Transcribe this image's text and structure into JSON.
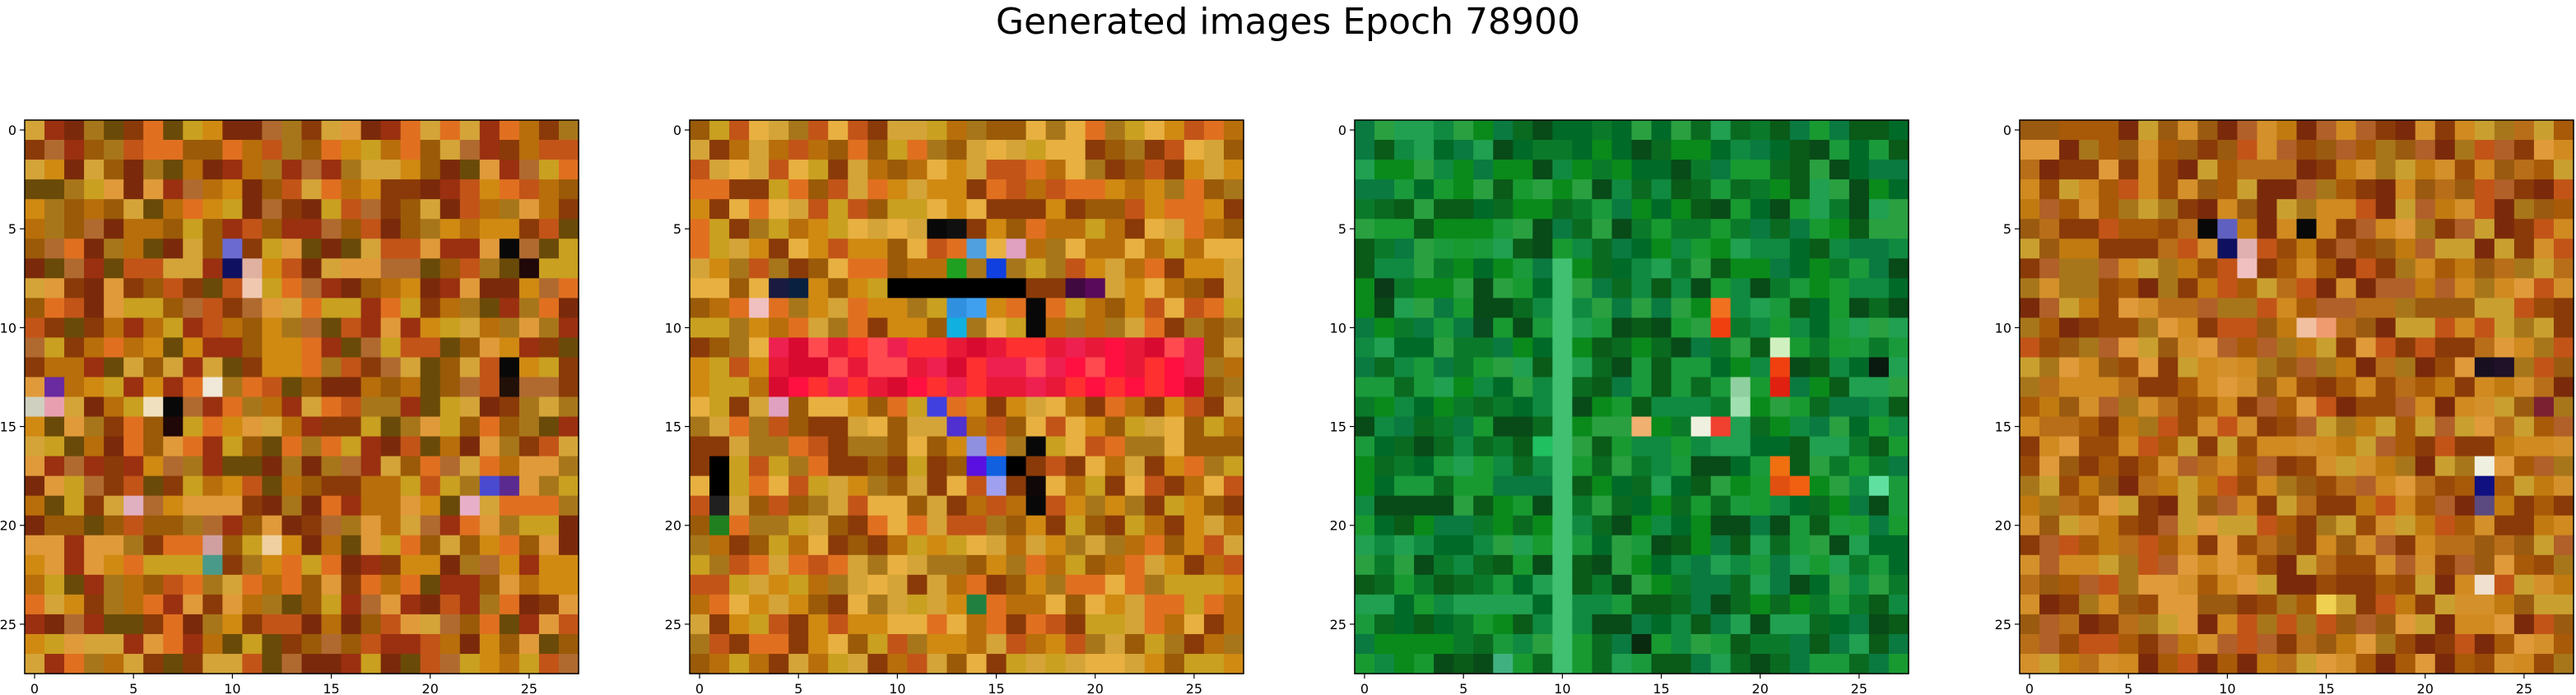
{
  "figure": {
    "title": "Generated images Epoch 78900"
  },
  "chart_data": {
    "type": "heatmap",
    "grid_size": 28,
    "panels": [
      {
        "name": "",
        "xticks": [
          "0",
          "5",
          "10",
          "15",
          "20",
          "25"
        ],
        "yticks": [
          "0",
          "5",
          "10",
          "15",
          "20",
          "25"
        ],
        "tick_values": [
          0,
          5,
          10,
          15,
          20,
          25
        ],
        "palette": [
          "#d08a12",
          "#b86e0a",
          "#9a5a08",
          "#c9a020",
          "#8a3a08",
          "#e07020",
          "#b06a30",
          "#7a2a0a",
          "#d4a438",
          "#a8761a",
          "#c25418",
          "#6a4a08",
          "#e09a3a",
          "#9a3010"
        ],
        "highlights": [
          {
            "r": 7,
            "c": 10,
            "color": "#101060"
          },
          {
            "r": 6,
            "c": 10,
            "color": "#6a6ad0"
          },
          {
            "r": 7,
            "c": 11,
            "color": "#e0b0a0"
          },
          {
            "r": 8,
            "c": 11,
            "color": "#f0c8b0"
          },
          {
            "r": 6,
            "c": 24,
            "color": "#080808"
          },
          {
            "r": 7,
            "c": 25,
            "color": "#200808"
          },
          {
            "r": 14,
            "c": 0,
            "color": "#d0d0c0"
          },
          {
            "r": 14,
            "c": 1,
            "color": "#e8a0b0"
          },
          {
            "r": 13,
            "c": 1,
            "color": "#6a2aa0"
          },
          {
            "r": 14,
            "c": 6,
            "color": "#f0e0c0"
          },
          {
            "r": 14,
            "c": 7,
            "color": "#080808"
          },
          {
            "r": 15,
            "c": 7,
            "color": "#200808"
          },
          {
            "r": 13,
            "c": 9,
            "color": "#f0e8d8"
          },
          {
            "r": 12,
            "c": 24,
            "color": "#080808"
          },
          {
            "r": 13,
            "c": 24,
            "color": "#201008"
          },
          {
            "r": 18,
            "c": 23,
            "color": "#4a4ad0"
          },
          {
            "r": 18,
            "c": 24,
            "color": "#5a2a90"
          },
          {
            "r": 19,
            "c": 22,
            "color": "#e8b0c8"
          },
          {
            "r": 21,
            "c": 9,
            "color": "#d0a0a0"
          },
          {
            "r": 22,
            "c": 9,
            "color": "#4a9a8a"
          },
          {
            "r": 21,
            "c": 12,
            "color": "#f0d0a0"
          },
          {
            "r": 19,
            "c": 5,
            "color": "#e0b0c0"
          }
        ]
      },
      {
        "name": "",
        "xticks": [
          "0",
          "5",
          "10",
          "15",
          "20",
          "25"
        ],
        "yticks": [
          "0",
          "5",
          "10",
          "15",
          "20",
          "25"
        ],
        "tick_values": [
          0,
          5,
          10,
          15,
          20,
          25
        ],
        "palette": [
          "#d08a12",
          "#b86e0a",
          "#c9a020",
          "#e07020",
          "#a8761a",
          "#d4a438",
          "#9a5a08",
          "#c25418",
          "#e8b040",
          "#8a3a08"
        ],
        "band": {
          "row_from": 11,
          "row_to": 13,
          "col_from": 4,
          "col_to": 25,
          "colors": [
            "#ff1040",
            "#ee2050",
            "#ff3030",
            "#e81838",
            "#ff4a50",
            "#d80a30"
          ]
        },
        "highlights": [
          {
            "r": 5,
            "c": 12,
            "color": "#080808"
          },
          {
            "r": 5,
            "c": 13,
            "color": "#101010"
          },
          {
            "r": 6,
            "c": 14,
            "color": "#50a0e0"
          },
          {
            "r": 7,
            "c": 15,
            "color": "#1040e0"
          },
          {
            "r": 6,
            "c": 16,
            "color": "#e0a0c0"
          },
          {
            "r": 7,
            "c": 13,
            "color": "#20a020"
          },
          {
            "r": 8,
            "c": 10,
            "color": "#000000"
          },
          {
            "r": 8,
            "c": 11,
            "color": "#000000"
          },
          {
            "r": 8,
            "c": 12,
            "color": "#000000"
          },
          {
            "r": 8,
            "c": 13,
            "color": "#000000"
          },
          {
            "r": 8,
            "c": 14,
            "color": "#000000"
          },
          {
            "r": 8,
            "c": 15,
            "color": "#000000"
          },
          {
            "r": 8,
            "c": 16,
            "color": "#000000"
          },
          {
            "r": 8,
            "c": 4,
            "color": "#1a1a40"
          },
          {
            "r": 8,
            "c": 5,
            "color": "#0a2040"
          },
          {
            "r": 9,
            "c": 13,
            "color": "#3090e0"
          },
          {
            "r": 9,
            "c": 14,
            "color": "#40a0f0"
          },
          {
            "r": 10,
            "c": 13,
            "color": "#10b0e0"
          },
          {
            "r": 9,
            "c": 17,
            "color": "#080808"
          },
          {
            "r": 10,
            "c": 17,
            "color": "#080808"
          },
          {
            "r": 14,
            "c": 12,
            "color": "#4040e0"
          },
          {
            "r": 15,
            "c": 13,
            "color": "#5030d0"
          },
          {
            "r": 16,
            "c": 14,
            "color": "#9090e0"
          },
          {
            "r": 17,
            "c": 14,
            "color": "#5a10e0"
          },
          {
            "r": 17,
            "c": 15,
            "color": "#1060e0"
          },
          {
            "r": 18,
            "c": 15,
            "color": "#a0a0f0"
          },
          {
            "r": 17,
            "c": 16,
            "color": "#000000"
          },
          {
            "r": 16,
            "c": 17,
            "color": "#080808"
          },
          {
            "r": 18,
            "c": 17,
            "color": "#100808"
          },
          {
            "r": 19,
            "c": 17,
            "color": "#080808"
          },
          {
            "r": 17,
            "c": 1,
            "color": "#000000"
          },
          {
            "r": 18,
            "c": 1,
            "color": "#000000"
          },
          {
            "r": 19,
            "c": 1,
            "color": "#202020"
          },
          {
            "r": 20,
            "c": 1,
            "color": "#208020"
          },
          {
            "r": 24,
            "c": 14,
            "color": "#208040"
          },
          {
            "r": 14,
            "c": 4,
            "color": "#e0a0c0"
          },
          {
            "r": 9,
            "c": 3,
            "color": "#f0c0c0"
          },
          {
            "r": 8,
            "c": 19,
            "color": "#400a40"
          },
          {
            "r": 8,
            "c": 20,
            "color": "#5a0a5a"
          }
        ]
      },
      {
        "name": "",
        "xticks": [
          "0",
          "5",
          "10",
          "15",
          "20",
          "25"
        ],
        "yticks": [
          "0",
          "5",
          "10",
          "15",
          "20",
          "25"
        ],
        "tick_values": [
          0,
          5,
          10,
          15,
          20,
          25
        ],
        "palette": [
          "#0a7a2a",
          "#0a8a1a",
          "#1a9a3a",
          "#0a6a20",
          "#108a40",
          "#0a5a18",
          "#2aa040",
          "#006a28",
          "#189a30",
          "#0a7a40",
          "#084a18",
          "#20a050"
        ],
        "band_col": {
          "col": 10,
          "row_from": 7,
          "row_to": 27,
          "color": "#40c070"
        },
        "highlights": [
          {
            "r": 9,
            "c": 18,
            "color": "#f07020"
          },
          {
            "r": 10,
            "c": 18,
            "color": "#f04010"
          },
          {
            "r": 11,
            "c": 21,
            "color": "#d0f0c0"
          },
          {
            "r": 12,
            "c": 21,
            "color": "#f04010"
          },
          {
            "r": 13,
            "c": 21,
            "color": "#e02010"
          },
          {
            "r": 13,
            "c": 19,
            "color": "#90d0a0"
          },
          {
            "r": 14,
            "c": 19,
            "color": "#a0e0b0"
          },
          {
            "r": 15,
            "c": 14,
            "color": "#f0b070"
          },
          {
            "r": 15,
            "c": 17,
            "color": "#f0f0e0"
          },
          {
            "r": 15,
            "c": 18,
            "color": "#f04030"
          },
          {
            "r": 17,
            "c": 21,
            "color": "#f07010"
          },
          {
            "r": 18,
            "c": 21,
            "color": "#e05010"
          },
          {
            "r": 18,
            "c": 22,
            "color": "#f06010"
          },
          {
            "r": 12,
            "c": 26,
            "color": "#0a1a10"
          },
          {
            "r": 18,
            "c": 26,
            "color": "#60e0a0"
          },
          {
            "r": 26,
            "c": 14,
            "color": "#0a2a10"
          },
          {
            "r": 27,
            "c": 7,
            "color": "#40b080"
          },
          {
            "r": 8,
            "c": 1,
            "color": "#0a3a18"
          },
          {
            "r": 16,
            "c": 9,
            "color": "#20c060"
          },
          {
            "r": 10,
            "c": 6,
            "color": "#0a4a20"
          }
        ]
      },
      {
        "name": "",
        "xticks": [
          "0",
          "5",
          "10",
          "15",
          "20",
          "25"
        ],
        "yticks": [
          "0",
          "5",
          "10",
          "15",
          "20",
          "25"
        ],
        "tick_values": [
          0,
          5,
          10,
          15,
          20,
          25
        ],
        "palette": [
          "#c07a10",
          "#a85a08",
          "#b86e18",
          "#9a4a08",
          "#d08a20",
          "#a8761a",
          "#8a3a08",
          "#c9a030",
          "#b06028",
          "#7a2a0a",
          "#d4902a",
          "#9a5a10",
          "#c25418",
          "#e09a3a"
        ],
        "highlights": [
          {
            "r": 5,
            "c": 9,
            "color": "#080808"
          },
          {
            "r": 6,
            "c": 10,
            "color": "#101060"
          },
          {
            "r": 5,
            "c": 10,
            "color": "#6060c0"
          },
          {
            "r": 6,
            "c": 11,
            "color": "#e0b0b0"
          },
          {
            "r": 7,
            "c": 11,
            "color": "#f0c0c0"
          },
          {
            "r": 5,
            "c": 14,
            "color": "#080808"
          },
          {
            "r": 10,
            "c": 14,
            "color": "#f0c0a0"
          },
          {
            "r": 10,
            "c": 15,
            "color": "#f09a70"
          },
          {
            "r": 12,
            "c": 23,
            "color": "#181020"
          },
          {
            "r": 12,
            "c": 24,
            "color": "#201028"
          },
          {
            "r": 17,
            "c": 23,
            "color": "#f0f0e0"
          },
          {
            "r": 18,
            "c": 23,
            "color": "#101080"
          },
          {
            "r": 19,
            "c": 23,
            "color": "#5a4a80"
          },
          {
            "r": 24,
            "c": 15,
            "color": "#f0d050"
          },
          {
            "r": 23,
            "c": 23,
            "color": "#f0e0d0"
          },
          {
            "r": 14,
            "c": 26,
            "color": "#7a2030"
          }
        ]
      }
    ]
  }
}
